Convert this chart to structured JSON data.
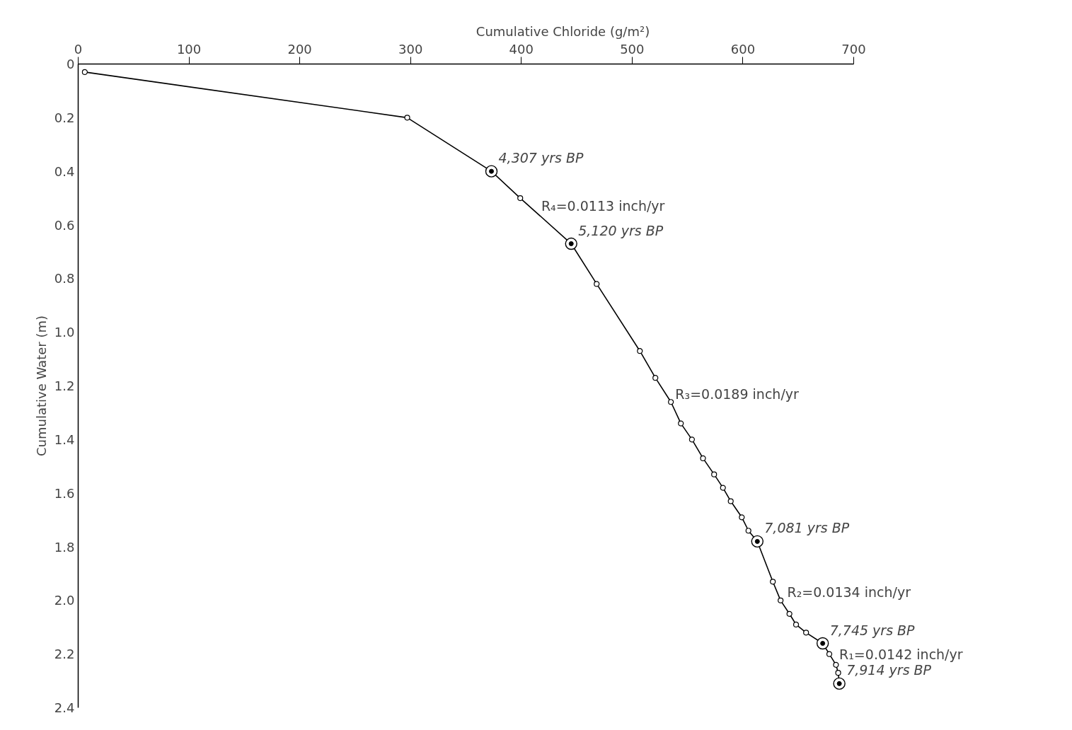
{
  "chart_data": {
    "type": "line",
    "xlabel": "Cumulative Chloride (g/m²)",
    "ylabel": "Cumulative Water (m)",
    "xlim": [
      0,
      700
    ],
    "xticks": [
      0,
      100,
      200,
      300,
      400,
      500,
      600,
      700
    ],
    "ylim": [
      2.4,
      0
    ],
    "yticks": [
      0,
      0.2,
      0.4,
      0.6,
      0.8,
      {
        "value": 1,
        "label": "1.0"
      },
      1.2,
      1.4,
      1.6,
      1.8,
      {
        "value": 2,
        "label": "2.0"
      },
      2.2,
      2.4
    ],
    "grid": false,
    "marker": "circle",
    "line_style": "solid",
    "series": [
      {
        "color": "#000000",
        "x": [
          6,
          297,
          373,
          399,
          445,
          468,
          507,
          521,
          535,
          544,
          554,
          564,
          574,
          582,
          589,
          599,
          605,
          613,
          627,
          634,
          642,
          648,
          657,
          672,
          678,
          684,
          686,
          687
        ],
        "values": [
          0.03,
          0.2,
          0.4,
          0.5,
          0.67,
          0.82,
          1.07,
          1.17,
          1.26,
          1.34,
          1.4,
          1.47,
          1.53,
          1.58,
          1.63,
          1.69,
          1.74,
          1.78,
          1.93,
          2.0,
          2.05,
          2.09,
          2.12,
          2.16,
          2.2,
          2.24,
          2.27,
          2.31
        ]
      },
      {
        "type": "scatter",
        "color": "#000000",
        "marker": "circle_dot",
        "x": [
          373,
          445,
          613,
          672,
          687
        ],
        "values": [
          0.4,
          0.67,
          1.78,
          2.16,
          2.31
        ]
      }
    ],
    "annotations": [
      {
        "text": "4,307 yrs BP",
        "x": 373,
        "y": 0.4
      },
      {
        "text": "5,120 yrs BP",
        "x": 445,
        "y": 0.67
      },
      {
        "text": "7,081 yrs BP",
        "x": 613,
        "y": 1.78
      },
      {
        "text": "7,745 yrs BP",
        "x": 672,
        "y": 2.16
      },
      {
        "text": "7,914 yrs BP",
        "x": 687,
        "y": 2.31
      },
      {
        "text": "R₄=0.0113 inch/yr",
        "x": 409,
        "y": 0.53
      },
      {
        "text": "R₃=0.0189 inch/yr",
        "x": 530,
        "y": 1.23
      },
      {
        "text": "R₂=0.0134 inch/yr",
        "x": 631,
        "y": 1.97
      },
      {
        "text": "R₁=0.0142 inch/yr",
        "x": 678,
        "y": 2.2
      }
    ]
  }
}
